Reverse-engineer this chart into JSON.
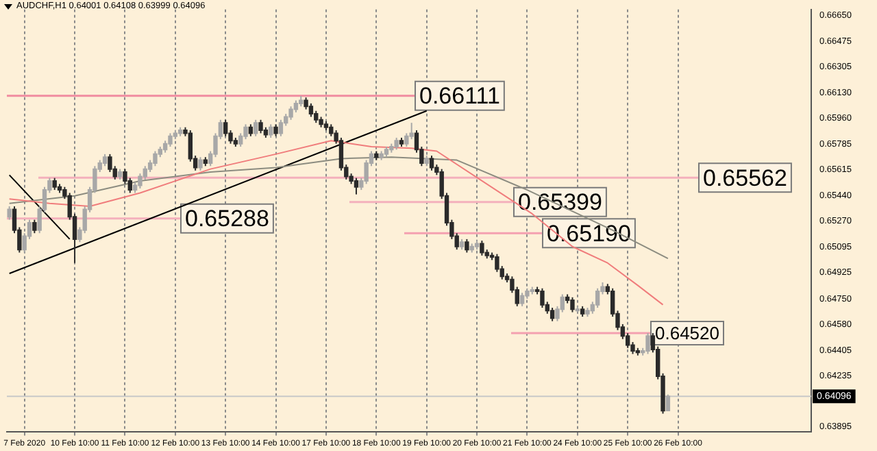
{
  "chart_data": {
    "type": "candlestick",
    "title": "AUDCHF,H1 0.64001 0.64108 0.63999 0.64096",
    "colors": [
      "#a8a8a8",
      "#2a2a2a",
      "#2a2a2a",
      "#a8a8a8",
      "#a8a8a8",
      "#2a2a2a",
      "#a8a8a8",
      "#a8a8a8",
      "#a8a8a8",
      "#2a2a2a",
      "#2a2a2a",
      "#2a2a2a",
      "#2a2a2a",
      "#2a2a2a",
      "#a8a8a8",
      "#a8a8a8",
      "#a8a8a8",
      "#a8a8a8",
      "#a8a8a8",
      "#a8a8a8",
      "#2a2a2a",
      "#2a2a2a",
      "#a8a8a8",
      "#2a2a2a",
      "#2a2a2a",
      "#a8a8a8",
      "#a8a8a8",
      "#a8a8a8",
      "#a8a8a8",
      "#a8a8a8",
      "#a8a8a8",
      "#a8a8a8",
      "#a8a8a8",
      "#a8a8a8",
      "#a8a8a8",
      "#2a2a2a",
      "#2a2a2a",
      "#2a2a2a",
      "#a8a8a8",
      "#2a2a2a",
      "#a8a8a8",
      "#a8a8a8",
      "#a8a8a8",
      "#2a2a2a",
      "#2a2a2a",
      "#2a2a2a",
      "#a8a8a8",
      "#a8a8a8",
      "#2a2a2a",
      "#a8a8a8",
      "#2a2a2a",
      "#2a2a2a",
      "#a8a8a8",
      "#2a2a2a",
      "#a8a8a8",
      "#a8a8a8",
      "#a8a8a8",
      "#a8a8a8",
      "#a8a8a8",
      "#2a2a2a",
      "#2a2a2a",
      "#2a2a2a",
      "#2a2a2a",
      "#2a2a2a",
      "#2a2a2a",
      "#2a2a2a",
      "#2a2a2a",
      "#2a2a2a",
      "#2a2a2a",
      "#2a2a2a",
      "#a8a8a8",
      "#a8a8a8",
      "#a8a8a8",
      "#2a2a2a",
      "#a8a8a8",
      "#a8a8a8",
      "#a8a8a8",
      "#a8a8a8",
      "#2a2a2a",
      "#a8a8a8",
      "#a8a8a8",
      "#2a2a2a",
      "#2a2a2a",
      "#a8a8a8",
      "#2a2a2a",
      "#2a2a2a",
      "#2a2a2a",
      "#2a2a2a",
      "#2a2a2a",
      "#2a2a2a",
      "#a8a8a8",
      "#2a2a2a",
      "#a8a8a8",
      "#a8a8a8",
      "#2a2a2a",
      "#2a2a2a",
      "#2a2a2a",
      "#2a2a2a",
      "#2a2a2a",
      "#2a2a2a",
      "#2a2a2a",
      "#2a2a2a",
      "#a8a8a8",
      "#a8a8a8",
      "#a8a8a8",
      "#2a2a2a",
      "#2a2a2a",
      "#2a2a2a",
      "#2a2a2a",
      "#a8a8a8",
      "#a8a8a8",
      "#2a2a2a",
      "#2a2a2a",
      "#a8a8a8",
      "#2a2a2a",
      "#a8a8a8",
      "#a8a8a8",
      "#a8a8a8",
      "#a8a8a8",
      "#2a2a2a",
      "#2a2a2a",
      "#2a2a2a",
      "#2a2a2a",
      "#2a2a2a",
      "#2a2a2a",
      "#2a2a2a",
      "#a8a8a8",
      "#a8a8a8",
      "#2a2a2a",
      "#2a2a2a",
      "#2a2a2a",
      "#a8a8a8",
      null,
      null,
      null,
      null,
      null,
      null,
      null,
      null,
      null,
      null,
      null,
      null,
      null,
      null,
      null,
      null,
      null,
      null,
      null,
      null,
      null,
      null,
      null,
      null,
      null,
      null,
      null,
      null
    ],
    "grid": "x",
    "categories": [
      null,
      null,
      null,
      "7 Feb 2020",
      null,
      null,
      null,
      null,
      null,
      null,
      null,
      null,
      null,
      "10 Feb 10:00",
      null,
      null,
      null,
      null,
      null,
      null,
      null,
      null,
      null,
      "11 Feb 10:00",
      null,
      null,
      null,
      null,
      null,
      null,
      null,
      null,
      null,
      "12 Feb 10:00",
      null,
      null,
      null,
      null,
      null,
      null,
      null,
      null,
      null,
      "13 Feb 10:00",
      null,
      null,
      null,
      null,
      null,
      null,
      null,
      null,
      null,
      "14 Feb 10:00",
      null,
      null,
      null,
      null,
      null,
      null,
      null,
      null,
      null,
      "17 Feb 10:00",
      null,
      null,
      null,
      null,
      null,
      null,
      null,
      null,
      null,
      "18 Feb 10:00",
      null,
      null,
      null,
      null,
      null,
      null,
      null,
      null,
      null,
      "19 Feb 10:00",
      null,
      null,
      null,
      null,
      null,
      null,
      null,
      null,
      null,
      "20 Feb 10:00",
      null,
      null,
      null,
      null,
      null,
      null,
      null,
      null,
      null,
      "21 Feb 10:00",
      null,
      null,
      null,
      null,
      null,
      null,
      null,
      null,
      null,
      "24 Feb 10:00",
      null,
      null,
      null,
      null,
      null,
      null,
      null,
      null,
      null,
      "25 Feb 10:00",
      null,
      null,
      null,
      null,
      null,
      null,
      null,
      null,
      null,
      "26 Feb 10:00",
      null,
      null,
      null,
      null,
      null,
      null,
      null,
      null,
      null,
      null,
      null,
      null,
      null,
      null,
      null,
      null,
      null,
      null,
      null,
      null,
      null,
      null,
      null,
      null,
      null,
      null
    ],
    "ohlc": [
      [
        0.653,
        0.6537,
        0.6528,
        0.6535
      ],
      [
        0.6535,
        0.6537,
        0.6519,
        0.6521
      ],
      [
        0.6521,
        0.6523,
        0.6506,
        0.6508
      ],
      [
        0.6508,
        0.6519,
        0.6506,
        0.6517
      ],
      [
        0.6517,
        0.6528,
        0.6515,
        0.6526
      ],
      [
        0.6526,
        0.6528,
        0.6519,
        0.6521
      ],
      [
        0.6521,
        0.6537,
        0.6519,
        0.6535
      ],
      [
        0.6535,
        0.655,
        0.6533,
        0.6548
      ],
      [
        0.6548,
        0.6556,
        0.6546,
        0.6554
      ],
      [
        0.6554,
        0.6556,
        0.6548,
        0.655
      ],
      [
        0.655,
        0.6552,
        0.6546,
        0.6548
      ],
      [
        0.6548,
        0.655,
        0.6542,
        0.6544
      ],
      [
        0.6544,
        0.6546,
        0.6528,
        0.653
      ],
      [
        0.653,
        0.6532,
        0.6499,
        0.6515
      ],
      [
        0.6515,
        0.6523,
        0.6513,
        0.6521
      ],
      [
        0.6521,
        0.6537,
        0.6519,
        0.6535
      ],
      [
        0.6535,
        0.655,
        0.6533,
        0.6548
      ],
      [
        0.6548,
        0.6564,
        0.6546,
        0.6562
      ],
      [
        0.6562,
        0.6568,
        0.656,
        0.6566
      ],
      [
        0.6566,
        0.6572,
        0.6564,
        0.657
      ],
      [
        0.657,
        0.6572,
        0.656,
        0.6562
      ],
      [
        0.6562,
        0.6564,
        0.6555,
        0.6557
      ],
      [
        0.6557,
        0.6562,
        0.6555,
        0.656
      ],
      [
        0.656,
        0.6562,
        0.6552,
        0.6554
      ],
      [
        0.6554,
        0.6556,
        0.6546,
        0.6548
      ],
      [
        0.6548,
        0.6553,
        0.6546,
        0.6551
      ],
      [
        0.6551,
        0.6559,
        0.6549,
        0.6557
      ],
      [
        0.6557,
        0.6564,
        0.6555,
        0.6562
      ],
      [
        0.6562,
        0.6568,
        0.656,
        0.6566
      ],
      [
        0.6566,
        0.6574,
        0.6564,
        0.6572
      ],
      [
        0.6572,
        0.6577,
        0.657,
        0.6575
      ],
      [
        0.6575,
        0.6581,
        0.6573,
        0.6579
      ],
      [
        0.6579,
        0.6586,
        0.6577,
        0.6584
      ],
      [
        0.6584,
        0.6588,
        0.6582,
        0.6586
      ],
      [
        0.6586,
        0.659,
        0.6584,
        0.6588
      ],
      [
        0.6588,
        0.659,
        0.6584,
        0.6586
      ],
      [
        0.6586,
        0.6588,
        0.6567,
        0.6569
      ],
      [
        0.6569,
        0.6571,
        0.6561,
        0.6563
      ],
      [
        0.6563,
        0.657,
        0.6561,
        0.6568
      ],
      [
        0.6568,
        0.657,
        0.6564,
        0.6566
      ],
      [
        0.6566,
        0.6574,
        0.6564,
        0.6572
      ],
      [
        0.6572,
        0.6586,
        0.657,
        0.6584
      ],
      [
        0.6584,
        0.6595,
        0.6582,
        0.6593
      ],
      [
        0.6593,
        0.6595,
        0.6584,
        0.6586
      ],
      [
        0.6586,
        0.6588,
        0.6579,
        0.6581
      ],
      [
        0.6581,
        0.6583,
        0.6577,
        0.6579
      ],
      [
        0.6579,
        0.6586,
        0.6577,
        0.6584
      ],
      [
        0.6584,
        0.6592,
        0.6582,
        0.659
      ],
      [
        0.659,
        0.6592,
        0.6584,
        0.6586
      ],
      [
        0.6586,
        0.6595,
        0.6584,
        0.6593
      ],
      [
        0.6593,
        0.6595,
        0.6586,
        0.6588
      ],
      [
        0.6588,
        0.659,
        0.6583,
        0.6585
      ],
      [
        0.6585,
        0.6592,
        0.6583,
        0.659
      ],
      [
        0.659,
        0.6592,
        0.6584,
        0.6586
      ],
      [
        0.6586,
        0.6595,
        0.6584,
        0.6593
      ],
      [
        0.6593,
        0.6599,
        0.6591,
        0.6597
      ],
      [
        0.6597,
        0.6604,
        0.6595,
        0.6602
      ],
      [
        0.6602,
        0.6608,
        0.66,
        0.6606
      ],
      [
        0.6606,
        0.6611,
        0.6604,
        0.6608
      ],
      [
        0.6608,
        0.661,
        0.6602,
        0.6604
      ],
      [
        0.6604,
        0.6606,
        0.6597,
        0.6599
      ],
      [
        0.6599,
        0.6601,
        0.6593,
        0.6595
      ],
      [
        0.6595,
        0.6597,
        0.659,
        0.6592
      ],
      [
        0.6592,
        0.6594,
        0.6588,
        0.659
      ],
      [
        0.659,
        0.6592,
        0.6584,
        0.6586
      ],
      [
        0.6586,
        0.6588,
        0.6579,
        0.6581
      ],
      [
        0.6581,
        0.6583,
        0.6561,
        0.6563
      ],
      [
        0.6563,
        0.6565,
        0.6555,
        0.6557
      ],
      [
        0.6557,
        0.6559,
        0.6552,
        0.6554
      ],
      [
        0.6554,
        0.6556,
        0.6545,
        0.655
      ],
      [
        0.655,
        0.6556,
        0.6548,
        0.6554
      ],
      [
        0.6554,
        0.6568,
        0.6552,
        0.6566
      ],
      [
        0.6566,
        0.6574,
        0.6564,
        0.6572
      ],
      [
        0.6572,
        0.6574,
        0.6568,
        0.657
      ],
      [
        0.657,
        0.6574,
        0.6568,
        0.6572
      ],
      [
        0.6572,
        0.6577,
        0.657,
        0.6575
      ],
      [
        0.6575,
        0.6579,
        0.6573,
        0.6577
      ],
      [
        0.6577,
        0.6583,
        0.6575,
        0.6581
      ],
      [
        0.6581,
        0.6583,
        0.6577,
        0.6579
      ],
      [
        0.6579,
        0.6586,
        0.6577,
        0.6584
      ],
      [
        0.6584,
        0.6593,
        0.6582,
        0.6586
      ],
      [
        0.6586,
        0.6588,
        0.6573,
        0.6575
      ],
      [
        0.6575,
        0.6577,
        0.6564,
        0.6566
      ],
      [
        0.6566,
        0.6571,
        0.6564,
        0.6569
      ],
      [
        0.6569,
        0.6571,
        0.6561,
        0.6563
      ],
      [
        0.6563,
        0.6565,
        0.6558,
        0.656
      ],
      [
        0.656,
        0.6562,
        0.6542,
        0.6544
      ],
      [
        0.6544,
        0.6546,
        0.6524,
        0.6526
      ],
      [
        0.6526,
        0.6528,
        0.6515,
        0.6517
      ],
      [
        0.6517,
        0.6519,
        0.6508,
        0.651
      ],
      [
        0.651,
        0.6515,
        0.6508,
        0.6513
      ],
      [
        0.6513,
        0.6515,
        0.6506,
        0.6508
      ],
      [
        0.6508,
        0.6512,
        0.6506,
        0.651
      ],
      [
        0.651,
        0.6514,
        0.6508,
        0.6512
      ],
      [
        0.6512,
        0.6514,
        0.6504,
        0.6506
      ],
      [
        0.6506,
        0.6508,
        0.6502,
        0.6504
      ],
      [
        0.6504,
        0.6506,
        0.6501,
        0.6503
      ],
      [
        0.6503,
        0.6505,
        0.6493,
        0.6495
      ],
      [
        0.6495,
        0.6497,
        0.6488,
        0.649
      ],
      [
        0.649,
        0.6492,
        0.6486,
        0.6488
      ],
      [
        0.6488,
        0.649,
        0.6479,
        0.6481
      ],
      [
        0.6481,
        0.6483,
        0.647,
        0.6472
      ],
      [
        0.6472,
        0.6479,
        0.647,
        0.6477
      ],
      [
        0.6477,
        0.6482,
        0.6475,
        0.648
      ],
      [
        0.648,
        0.6483,
        0.6478,
        0.6481
      ],
      [
        0.6481,
        0.6483,
        0.6478,
        0.648
      ],
      [
        0.648,
        0.6482,
        0.6469,
        0.6471
      ],
      [
        0.6471,
        0.6473,
        0.6465,
        0.6467
      ],
      [
        0.6467,
        0.6469,
        0.646,
        0.6462
      ],
      [
        0.6462,
        0.647,
        0.646,
        0.6468
      ],
      [
        0.6468,
        0.6478,
        0.6466,
        0.6476
      ],
      [
        0.6476,
        0.6478,
        0.6472,
        0.6474
      ],
      [
        0.6474,
        0.6476,
        0.6466,
        0.6468
      ],
      [
        0.6468,
        0.647,
        0.6466,
        0.6468
      ],
      [
        0.6468,
        0.647,
        0.6463,
        0.6465
      ],
      [
        0.6465,
        0.6469,
        0.6463,
        0.6467
      ],
      [
        0.6467,
        0.6473,
        0.6465,
        0.6471
      ],
      [
        0.6471,
        0.6482,
        0.6469,
        0.648
      ],
      [
        0.648,
        0.6486,
        0.6478,
        0.6483
      ],
      [
        0.6483,
        0.6485,
        0.6478,
        0.648
      ],
      [
        0.648,
        0.6482,
        0.6463,
        0.6465
      ],
      [
        0.6465,
        0.6467,
        0.6454,
        0.6456
      ],
      [
        0.6456,
        0.6458,
        0.6448,
        0.645
      ],
      [
        0.645,
        0.6452,
        0.6442,
        0.6444
      ],
      [
        0.6444,
        0.6446,
        0.6438,
        0.644
      ],
      [
        0.644,
        0.6442,
        0.6437,
        0.6439
      ],
      [
        0.6439,
        0.6442,
        0.6437,
        0.644
      ],
      [
        0.644,
        0.6452,
        0.6438,
        0.645
      ],
      [
        0.645,
        0.6452,
        0.6439,
        0.6441
      ],
      [
        0.6441,
        0.6443,
        0.6421,
        0.6423
      ],
      [
        0.6423,
        0.6425,
        0.6398,
        0.64
      ],
      [
        0.64001,
        0.64108,
        0.63999,
        0.64096
      ],
      null,
      null,
      null,
      null,
      null,
      null,
      null,
      null,
      null,
      null,
      null,
      null,
      null,
      null,
      null,
      null,
      null,
      null,
      null,
      null,
      null,
      null,
      null,
      null,
      null,
      null,
      null,
      null
    ],
    "series": [
      {
        "type": "line",
        "color": "#f07c7c",
        "values": [
          0.6542,
          null,
          null,
          null,
          null,
          null,
          null,
          null,
          0.6539,
          null,
          null,
          null,
          null,
          null,
          null,
          null,
          0.6537,
          null,
          null,
          null,
          null,
          null,
          null,
          null,
          null,
          null,
          0.6546,
          null,
          null,
          null,
          null,
          null,
          null,
          null,
          null,
          null,
          null,
          null,
          null,
          null,
          0.6562,
          null,
          null,
          null,
          null,
          null,
          null,
          null,
          null,
          null,
          null,
          null,
          null,
          0.6572,
          null,
          null,
          null,
          null,
          null,
          null,
          null,
          null,
          null,
          null,
          0.6581,
          null,
          null,
          null,
          null,
          null,
          null,
          null,
          0.6577,
          null,
          null,
          null,
          null,
          null,
          null,
          null,
          0.6576,
          null,
          null,
          null,
          null,
          0.6574,
          null,
          null,
          null,
          null,
          null,
          null,
          null,
          null,
          null,
          null,
          null,
          null,
          null,
          null,
          null,
          null,
          null,
          null,
          0.6532,
          null,
          null,
          null,
          null,
          null,
          null,
          null,
          0.651,
          null,
          null,
          null,
          null,
          null,
          null,
          0.6499,
          null,
          null,
          null,
          null,
          null,
          0.6484,
          null,
          null,
          null,
          null,
          0.6471,
          null,
          null,
          null,
          null,
          null,
          null,
          null,
          null,
          null,
          null,
          null,
          null,
          null,
          null,
          null,
          null,
          null,
          null,
          null,
          null,
          null,
          null,
          null,
          null,
          null,
          null,
          null,
          null,
          null
        ]
      },
      {
        "type": "line",
        "color": "#8c8c80",
        "values": [
          0.6539,
          null,
          null,
          null,
          null,
          null,
          null,
          null,
          null,
          null,
          null,
          null,
          null,
          0.6544,
          null,
          null,
          null,
          null,
          null,
          null,
          null,
          null,
          null,
          null,
          null,
          null,
          0.6554,
          null,
          null,
          null,
          null,
          null,
          null,
          null,
          null,
          null,
          null,
          null,
          null,
          null,
          0.656,
          null,
          null,
          null,
          null,
          null,
          null,
          null,
          null,
          null,
          null,
          null,
          null,
          0.6563,
          null,
          null,
          null,
          null,
          null,
          null,
          null,
          null,
          null,
          null,
          null,
          null,
          0.6569,
          null,
          null,
          null,
          null,
          null,
          null,
          null,
          null,
          null,
          0.657,
          null,
          null,
          null,
          null,
          null,
          null,
          null,
          null,
          null,
          null,
          null,
          null,
          0.6568,
          null,
          null,
          null,
          null,
          null,
          null,
          null,
          null,
          null,
          null,
          null,
          null,
          null,
          0.6548,
          null,
          null,
          null,
          null,
          null,
          null,
          null,
          null,
          null,
          null,
          null,
          null,
          null,
          null,
          null,
          null,
          0.6521,
          null,
          null,
          null,
          null,
          null,
          null,
          null,
          null,
          null,
          null,
          0.6502,
          null,
          null,
          null,
          null,
          null,
          null,
          null,
          null,
          null,
          null,
          null,
          null,
          null,
          null,
          null,
          null,
          null,
          null,
          null,
          null,
          null,
          null,
          null,
          null,
          null,
          null,
          null,
          null
        ]
      },
      {
        "type": "line",
        "color": "#000000",
        "values": [
          0.6492,
          null,
          null,
          null,
          null,
          null,
          null,
          null,
          null,
          null,
          null,
          null,
          null,
          null,
          null,
          null,
          null,
          null,
          null,
          null,
          null,
          null,
          null,
          null,
          null,
          null,
          null,
          null,
          null,
          null,
          null,
          null,
          null,
          null,
          null,
          null,
          null,
          null,
          null,
          null,
          null,
          null,
          null,
          null,
          null,
          null,
          null,
          null,
          null,
          null,
          null,
          null,
          null,
          null,
          null,
          null,
          null,
          null,
          null,
          null,
          null,
          null,
          null,
          null,
          null,
          null,
          null,
          null,
          null,
          null,
          null,
          null,
          null,
          null,
          null,
          null,
          null,
          null,
          null,
          null,
          null,
          null,
          null,
          0.6601,
          null,
          null,
          null,
          null,
          null,
          null,
          null,
          null,
          null,
          null,
          null,
          null,
          null,
          null,
          null,
          null,
          null,
          null,
          null,
          null,
          null,
          null,
          null,
          null,
          null,
          null,
          null,
          null,
          null,
          null,
          null,
          null,
          null,
          null,
          null,
          null,
          null,
          null,
          null,
          null,
          null,
          null,
          null,
          null,
          null,
          null,
          null,
          null,
          null,
          null,
          null,
          null,
          null,
          null,
          null,
          null,
          null,
          null,
          null,
          null,
          null,
          null,
          null,
          null,
          null,
          null,
          null,
          null,
          null,
          null,
          null,
          null,
          null,
          null,
          null,
          null
        ]
      },
      {
        "type": "line",
        "color": "#000000",
        "values": [
          0.6558,
          null,
          null,
          null,
          null,
          null,
          null,
          null,
          null,
          null,
          null,
          null,
          0.6515,
          null,
          null,
          null,
          null,
          null,
          null,
          null,
          null,
          null,
          null,
          null,
          null,
          null,
          null,
          null,
          null,
          null,
          null,
          null,
          null,
          null,
          null,
          null,
          null,
          null,
          null,
          null,
          null,
          null,
          null,
          null,
          null,
          null,
          null,
          null,
          null,
          null,
          null,
          null,
          null,
          null,
          null,
          null,
          null,
          null,
          null,
          null,
          null,
          null,
          null,
          null,
          null,
          null,
          null,
          null,
          null,
          null,
          null,
          null,
          null,
          null,
          null,
          null,
          null,
          null,
          null,
          null,
          null,
          null,
          null,
          null,
          null,
          null,
          null,
          null,
          null,
          null,
          null,
          null,
          null,
          null,
          null,
          null,
          null,
          null,
          null,
          null,
          null,
          null,
          null,
          null,
          null,
          null,
          null,
          null,
          null,
          null,
          null,
          null,
          null,
          null,
          null,
          null,
          null,
          null,
          null,
          null,
          null,
          null,
          null,
          null,
          null,
          null,
          null,
          null,
          null,
          null,
          null,
          null,
          null,
          null,
          null,
          null,
          null,
          null,
          null,
          null,
          null,
          null,
          null,
          null,
          null,
          null,
          null,
          null,
          null,
          null,
          null,
          null,
          null,
          null,
          null,
          null,
          null,
          null,
          null,
          null
        ]
      }
    ],
    "ylim": [
      0.6386,
      0.6669
    ],
    "yticks": [
      {
        "value": 0.6665,
        "label": "0.66650"
      },
      {
        "value": 0.66475,
        "label": "0.66475"
      },
      {
        "value": 0.66305,
        "label": "0.66305"
      },
      {
        "value": 0.6613,
        "label": "0.66130"
      },
      {
        "value": 0.6596,
        "label": "0.65960"
      },
      {
        "value": 0.65785,
        "label": "0.65785"
      },
      {
        "value": 0.65615,
        "label": "0.65615"
      },
      {
        "value": 0.6544,
        "label": "0.65440"
      },
      {
        "value": 0.6527,
        "label": "0.65270"
      },
      {
        "value": 0.65095,
        "label": "0.65095"
      },
      {
        "value": 0.64925,
        "label": "0.64925"
      },
      {
        "value": 0.6475,
        "label": "0.64750"
      },
      {
        "value": 0.6458,
        "label": "0.64580"
      },
      {
        "value": 0.64405,
        "label": "0.64405"
      },
      {
        "value": 0.64235,
        "label": "0.64235"
      },
      {
        "value": 0.63895,
        "label": "0.63895"
      }
    ],
    "ref_lines": [
      {
        "axis": "y",
        "value": 0.66111,
        "label": "0.66111",
        "color": "#f08ca0"
      },
      {
        "axis": "y",
        "value": 0.65562,
        "label": "0.65562",
        "color": "#f4b0bc"
      },
      {
        "axis": "y",
        "value": 0.65288,
        "label": "0.65288",
        "color": "#f4b0bc"
      },
      {
        "axis": "y",
        "value": 0.65399,
        "label": "0.65399",
        "color": "#f4b0bc"
      },
      {
        "axis": "y",
        "value": 0.6519,
        "label": "0.65190",
        "color": "#f4a0b0"
      },
      {
        "axis": "y",
        "value": 0.6452,
        "label": "0.64520",
        "color": "#f4a0b0"
      },
      {
        "axis": "y",
        "value": 0.64096,
        "label": "0.64096",
        "color": "#c8c8c8"
      }
    ]
  }
}
